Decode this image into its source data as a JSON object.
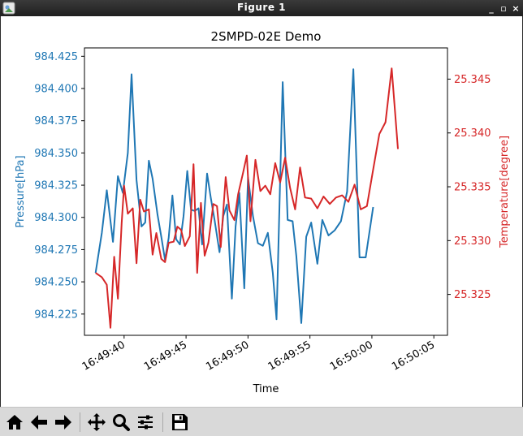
{
  "window": {
    "title": "Figure 1",
    "buttons": {
      "minimize": "_",
      "maximize": "▫",
      "close": "×"
    }
  },
  "toolbar": {
    "items": [
      {
        "name": "home-icon",
        "tooltip": "Reset original view"
      },
      {
        "name": "back-icon",
        "tooltip": "Back to previous view"
      },
      {
        "name": "forward-icon",
        "tooltip": "Forward to next view"
      },
      {
        "name": "pan-icon",
        "tooltip": "Pan axes"
      },
      {
        "name": "zoom-icon",
        "tooltip": "Zoom to rectangle"
      },
      {
        "name": "configure-subplots-icon",
        "tooltip": "Configure subplots"
      },
      {
        "name": "save-icon",
        "tooltip": "Save the figure"
      }
    ]
  },
  "chart_data": {
    "type": "line",
    "title": "2SMPD-02E Demo",
    "xlabel": "Time",
    "x_unit": "seconds",
    "x_ticks": [
      {
        "t": 40,
        "label": "16:49:40"
      },
      {
        "t": 45,
        "label": "16:49:45"
      },
      {
        "t": 50,
        "label": "16:49:50"
      },
      {
        "t": 55,
        "label": "16:49:55"
      },
      {
        "t": 60,
        "label": "16:50:00"
      },
      {
        "t": 65,
        "label": "16:50:05"
      }
    ],
    "xlim": [
      36.8,
      66.1
    ],
    "left_axis": {
      "label": "Pressure[hPa]",
      "color": "#1f77b4",
      "ylim": [
        984.2085,
        984.4315
      ],
      "ticks": [
        "984.225",
        "984.250",
        "984.275",
        "984.300",
        "984.325",
        "984.350",
        "984.375",
        "984.400",
        "984.425"
      ],
      "tick_values": [
        984.225,
        984.25,
        984.275,
        984.3,
        984.325,
        984.35,
        984.375,
        984.4,
        984.425
      ]
    },
    "right_axis": {
      "label": "Temperature[degree]",
      "color": "#d62728",
      "ylim": [
        25.3212,
        25.3479
      ],
      "ticks": [
        "25.325",
        "25.330",
        "25.335",
        "25.340",
        "25.345"
      ],
      "tick_values": [
        25.325,
        25.33,
        25.335,
        25.34,
        25.345
      ]
    },
    "series": [
      {
        "axis": "left",
        "color": "#1f77b4",
        "points": [
          [
            37.7,
            984.257
          ],
          [
            38.2,
            984.288
          ],
          [
            38.6,
            984.321
          ],
          [
            39.1,
            984.281
          ],
          [
            39.5,
            984.332
          ],
          [
            39.9,
            984.319
          ],
          [
            40.3,
            984.35
          ],
          [
            40.6,
            984.411
          ],
          [
            41.0,
            984.329
          ],
          [
            41.4,
            984.293
          ],
          [
            41.7,
            984.296
          ],
          [
            42.0,
            984.344
          ],
          [
            42.3,
            984.33
          ],
          [
            42.7,
            984.302
          ],
          [
            43.0,
            984.285
          ],
          [
            43.3,
            984.267
          ],
          [
            43.6,
            984.284
          ],
          [
            43.9,
            984.317
          ],
          [
            44.2,
            984.283
          ],
          [
            44.5,
            984.279
          ],
          [
            44.8,
            984.301
          ],
          [
            45.1,
            984.336
          ],
          [
            45.4,
            984.306
          ],
          [
            45.7,
            984.305
          ],
          [
            46.0,
            984.307
          ],
          [
            46.3,
            984.279
          ],
          [
            46.7,
            984.334
          ],
          [
            47.0,
            984.315
          ],
          [
            47.3,
            984.298
          ],
          [
            47.7,
            984.273
          ],
          [
            48.0,
            984.301
          ],
          [
            48.3,
            984.31
          ],
          [
            48.7,
            984.237
          ],
          [
            49.0,
            984.293
          ],
          [
            49.3,
            984.319
          ],
          [
            49.7,
            984.245
          ],
          [
            50.0,
            984.331
          ],
          [
            50.4,
            984.301
          ],
          [
            50.8,
            984.28
          ],
          [
            51.2,
            984.278
          ],
          [
            51.6,
            984.288
          ],
          [
            52.0,
            984.257
          ],
          [
            52.3,
            984.221
          ],
          [
            52.8,
            984.405
          ],
          [
            53.2,
            984.298
          ],
          [
            53.6,
            984.297
          ],
          [
            53.9,
            984.27
          ],
          [
            54.3,
            984.218
          ],
          [
            54.7,
            984.285
          ],
          [
            55.1,
            984.296
          ],
          [
            55.6,
            984.264
          ],
          [
            56.0,
            984.298
          ],
          [
            56.5,
            984.286
          ],
          [
            57.0,
            984.29
          ],
          [
            57.5,
            984.297
          ],
          [
            58.0,
            984.32
          ],
          [
            58.5,
            984.415
          ],
          [
            59.0,
            984.269
          ],
          [
            59.5,
            984.269
          ],
          [
            60.1,
            984.308
          ]
        ]
      },
      {
        "axis": "right",
        "color": "#d62728",
        "points": [
          [
            37.7,
            25.327
          ],
          [
            38.2,
            25.3266
          ],
          [
            38.6,
            25.3259
          ],
          [
            38.9,
            25.3219
          ],
          [
            39.2,
            25.3285
          ],
          [
            39.5,
            25.3246
          ],
          [
            39.8,
            25.3316
          ],
          [
            40.0,
            25.3351
          ],
          [
            40.3,
            25.3325
          ],
          [
            40.7,
            25.333
          ],
          [
            41.0,
            25.3279
          ],
          [
            41.3,
            25.3338
          ],
          [
            41.6,
            25.3327
          ],
          [
            42.0,
            25.3329
          ],
          [
            42.3,
            25.3287
          ],
          [
            42.6,
            25.3307
          ],
          [
            43.0,
            25.3283
          ],
          [
            43.3,
            25.328
          ],
          [
            43.6,
            25.3298
          ],
          [
            44.0,
            25.3299
          ],
          [
            44.3,
            25.3313
          ],
          [
            44.6,
            25.331
          ],
          [
            44.9,
            25.3295
          ],
          [
            45.3,
            25.3304
          ],
          [
            45.6,
            25.3371
          ],
          [
            45.9,
            25.327
          ],
          [
            46.2,
            25.3335
          ],
          [
            46.5,
            25.3286
          ],
          [
            46.8,
            25.3298
          ],
          [
            47.2,
            25.3334
          ],
          [
            47.5,
            25.3332
          ],
          [
            47.8,
            25.3294
          ],
          [
            48.2,
            25.3359
          ],
          [
            48.5,
            25.3328
          ],
          [
            48.9,
            25.3319
          ],
          [
            49.2,
            25.3343
          ],
          [
            49.6,
            25.3363
          ],
          [
            49.9,
            25.3379
          ],
          [
            50.2,
            25.3318
          ],
          [
            50.6,
            25.3375
          ],
          [
            51.0,
            25.3346
          ],
          [
            51.4,
            25.3351
          ],
          [
            51.8,
            25.3343
          ],
          [
            52.2,
            25.3372
          ],
          [
            52.6,
            25.3354
          ],
          [
            53.0,
            25.3377
          ],
          [
            53.4,
            25.3349
          ],
          [
            53.8,
            25.3329
          ],
          [
            54.2,
            25.3368
          ],
          [
            54.6,
            25.334
          ],
          [
            55.1,
            25.3339
          ],
          [
            55.6,
            25.333
          ],
          [
            56.1,
            25.3341
          ],
          [
            56.6,
            25.3334
          ],
          [
            57.1,
            25.334
          ],
          [
            57.6,
            25.3342
          ],
          [
            58.1,
            25.3336
          ],
          [
            58.6,
            25.3352
          ],
          [
            59.1,
            25.3329
          ],
          [
            59.6,
            25.3332
          ],
          [
            60.1,
            25.3366
          ],
          [
            60.6,
            25.3399
          ],
          [
            61.1,
            25.341
          ],
          [
            61.6,
            25.346
          ],
          [
            62.1,
            25.3385
          ]
        ]
      }
    ]
  }
}
